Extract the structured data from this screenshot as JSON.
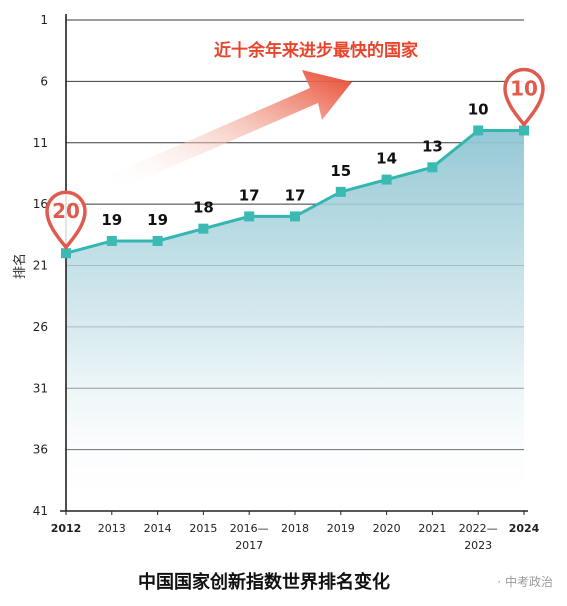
{
  "chart_data": {
    "type": "area",
    "ylabel": "排名",
    "categories": [
      "2012",
      "2013",
      "2014",
      "2015",
      "2016—2017",
      "2018",
      "2019",
      "2020",
      "2021",
      "2022—2023",
      "2024"
    ],
    "bold_categories": [
      "2012",
      "2024"
    ],
    "values": [
      20,
      19,
      19,
      18,
      17,
      17,
      15,
      14,
      13,
      10,
      10
    ],
    "y_ticks": [
      1,
      6,
      11,
      16,
      21,
      26,
      31,
      36,
      41
    ],
    "ylim": [
      1,
      41
    ],
    "y_inverted": true,
    "grid": true,
    "annotation": "近十余年来进步最快的国家",
    "highlight_start": {
      "category": "2012",
      "label": "20"
    },
    "highlight_end": {
      "category": "2024",
      "label": "10"
    },
    "colors": {
      "line": "#33b5b0",
      "marker": "#3bbab4",
      "fill": "#9fcfd9",
      "highlight": "#e05a4e",
      "arrow": "#e8452c"
    }
  },
  "caption": {
    "title": "中国国家创新指数世界排名变化",
    "source": "· 中考政治"
  }
}
